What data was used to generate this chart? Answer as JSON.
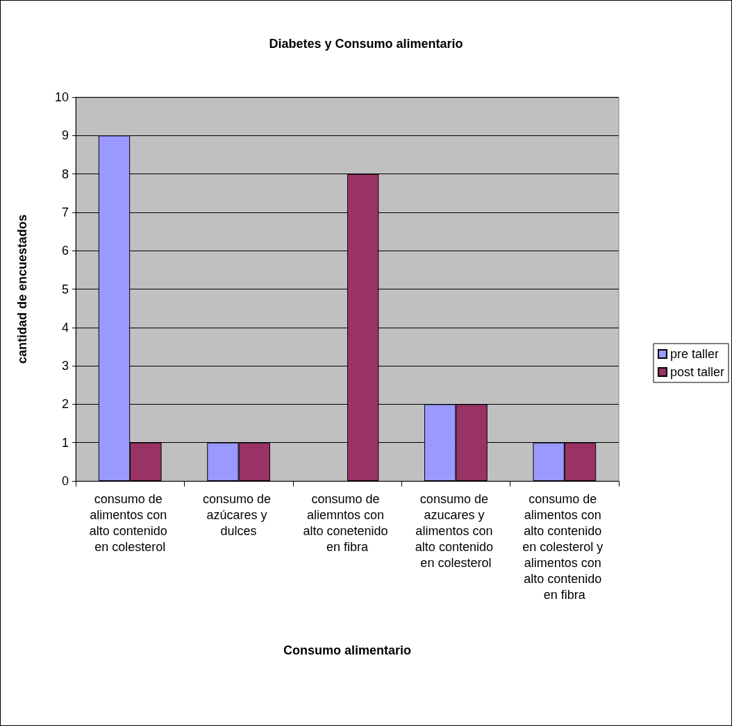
{
  "chart_data": {
    "type": "bar",
    "title": "Diabetes y Consumo alimentario",
    "xlabel": "Consumo alimentario",
    "ylabel": "cantidad de encuestados",
    "categories": [
      "consumo de alimentos con alto contenido en colesterol",
      "consumo de azúcares y dulces",
      "consumo de aliemntos con alto conetenido en fibra",
      "consumo de azucares y alimentos con alto contenido en colesterol",
      "consumo de alimentos con alto contenido en colesterol y alimentos con alto contenido en fibra"
    ],
    "series": [
      {
        "name": "pre taller",
        "color": "#9999ff",
        "values": [
          9,
          1,
          0,
          2,
          1
        ]
      },
      {
        "name": "post taller",
        "color": "#993366",
        "values": [
          1,
          1,
          8,
          2,
          1
        ]
      }
    ],
    "ylim": [
      0,
      10
    ],
    "yticks": [
      0,
      1,
      2,
      3,
      4,
      5,
      6,
      7,
      8,
      9,
      10
    ],
    "grid": "y",
    "legend": "right"
  }
}
